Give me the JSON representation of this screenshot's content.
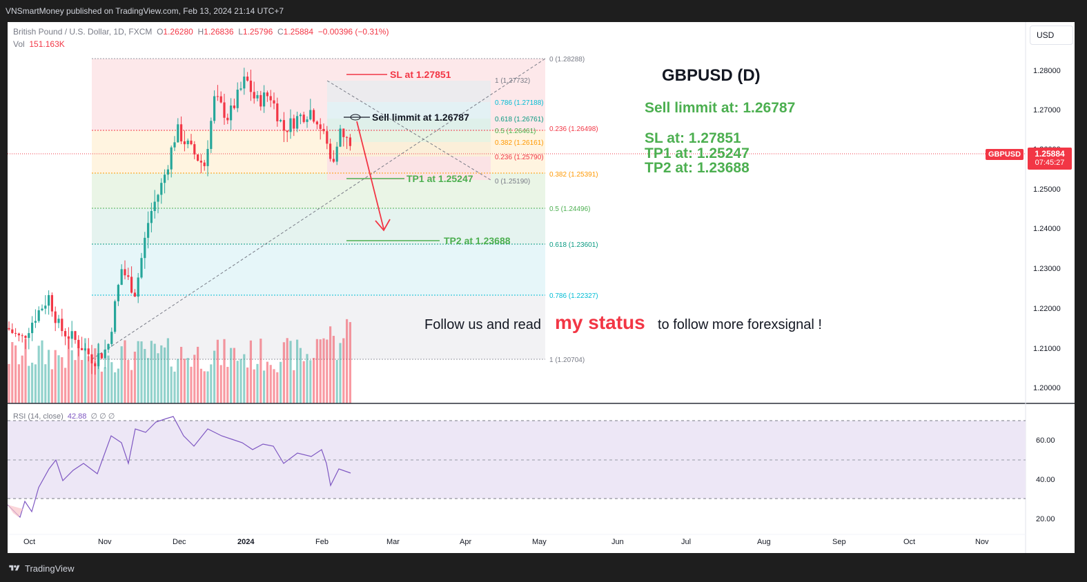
{
  "header": {
    "publish_line": "VNSmartMoney published on TradingView.com, Feb 13, 2024 21:14 UTC+7"
  },
  "footer": {
    "brand": "TradingView"
  },
  "legend": {
    "instrument": "British Pound / U.S. Dollar, 1D, FXCM",
    "o_label": "O",
    "o_value": "1.26280",
    "h_label": "H",
    "h_value": "1.26836",
    "l_label": "L",
    "l_value": "1.25796",
    "c_label": "C",
    "c_value": "1.25884",
    "change": "−0.00396 (−0.31%)",
    "vol_label": "Vol",
    "vol_value": "151.163K"
  },
  "rsi": {
    "label": "RSI (14, close)",
    "value": "42.88",
    "extra": "∅ ∅ ∅"
  },
  "currency_button": "USD",
  "price_scale": {
    "symbol_tag": "GBPUSD",
    "last_price": "1.25884",
    "countdown": "07:45:27",
    "ticks": [
      "1.28000",
      "1.27000",
      "1.26000",
      "1.25000",
      "1.24000",
      "1.23000",
      "1.22000",
      "1.21000",
      "1.20000"
    ],
    "rsi_ticks": [
      "60.00",
      "40.00",
      "20.00"
    ]
  },
  "time_axis": [
    "Oct",
    "Nov",
    "Dec",
    "2024",
    "Feb",
    "Mar",
    "Apr",
    "May",
    "Jun",
    "Jul",
    "Aug",
    "Sep",
    "Oct",
    "Nov"
  ],
  "fib_big": [
    {
      "label": "0 (1.28288)",
      "color": "#787b86"
    },
    {
      "label": "0.236 (1.26498)",
      "color": "#f23645"
    },
    {
      "label": "0.382 (1.25391)",
      "color": "#ff9800"
    },
    {
      "label": "0.5 (1.24496)",
      "color": "#4caf50"
    },
    {
      "label": "0.618 (1.23601)",
      "color": "#089981"
    },
    {
      "label": "0.786 (1.22327)",
      "color": "#00bcd4"
    },
    {
      "label": "1 (1.20704)",
      "color": "#787b86"
    }
  ],
  "fib_small": [
    {
      "label": "1 (1.27732)",
      "color": "#787b86"
    },
    {
      "label": "0.786 (1.27188)",
      "color": "#00bcd4"
    },
    {
      "label": "0.618 (1.26761)",
      "color": "#089981"
    },
    {
      "label": "0.5 (1.26461)",
      "color": "#4caf50"
    },
    {
      "label": "0.382 (1.26161)",
      "color": "#ff9800"
    },
    {
      "label": "0.236 (1.25790)",
      "color": "#f23645"
    },
    {
      "label": "0 (1.25190)",
      "color": "#787b86"
    }
  ],
  "annotations": {
    "sl": "SL at 1.27851",
    "sell_limit": "Sell limmit at 1.26787",
    "tp1": "TP1 at 1.25247",
    "tp2": "TP2 at 1.23688",
    "panel_title": "GBPUSD (D)",
    "panel_sell": "Sell limmit at: 1.26787",
    "panel_sl": "SL at: 1.27851",
    "panel_tp1": "TP1 at: 1.25247",
    "panel_tp2": "TP2 at: 1.23688",
    "follow_a": "Follow us and read",
    "follow_b": "my status",
    "follow_c": "to follow more forexsignal !"
  },
  "colors": {
    "up": "#26a69a",
    "down": "#f23645",
    "rsi_line": "#7e57c2",
    "annotation_green": "#4caf50"
  }
}
